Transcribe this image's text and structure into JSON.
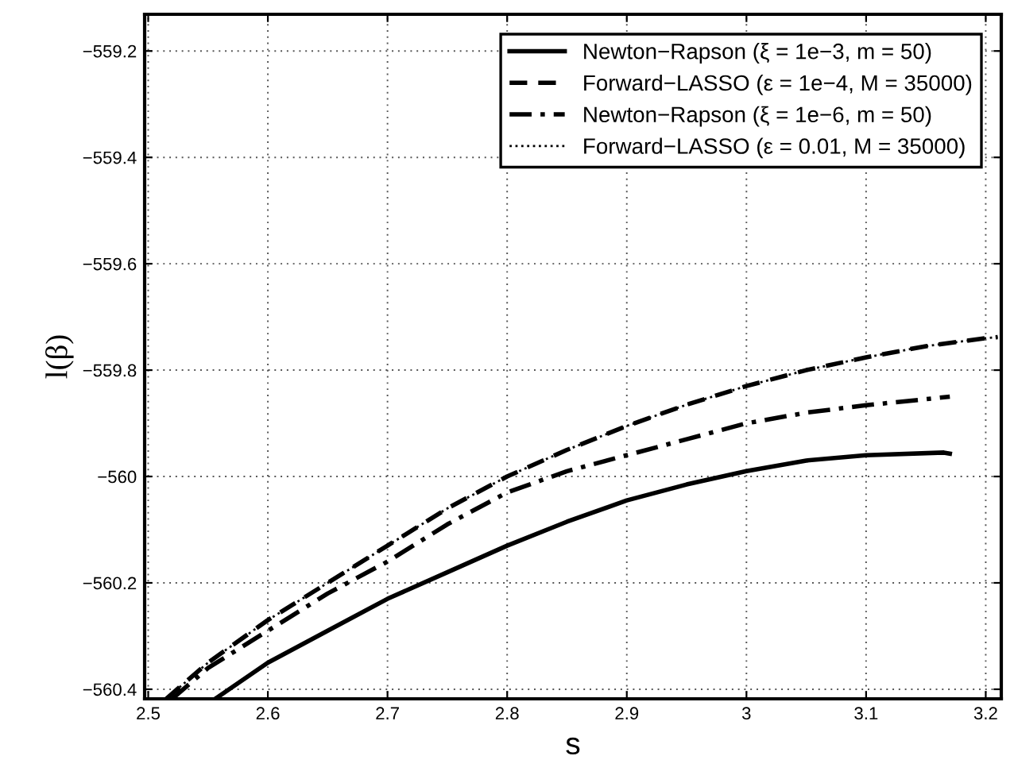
{
  "chart_data": {
    "type": "line",
    "xlabel": "s",
    "ylabel": "l(β)",
    "xlim": [
      2.497,
      3.213
    ],
    "ylim": [
      -560.418,
      -559.131
    ],
    "xticks": [
      2.5,
      2.6,
      2.7,
      2.8,
      2.9,
      3,
      3.1,
      3.2
    ],
    "yticks": [
      -560.4,
      -560.2,
      -560,
      -559.8,
      -559.6,
      -559.4,
      -559.2
    ],
    "grid": true,
    "legend": "top right",
    "series": [
      {
        "name": "Newton−Rapson (ξ = 1e−3, m = 50)",
        "color": "#000000",
        "line_style": "solid",
        "x": [
          2.556,
          2.6,
          2.65,
          2.7,
          2.75,
          2.8,
          2.85,
          2.9,
          2.95,
          3.0,
          3.05,
          3.1,
          3.165,
          3.17
        ],
        "values": [
          -560.418,
          -560.35,
          -560.29,
          -560.23,
          -560.18,
          -560.13,
          -560.085,
          -560.045,
          -560.015,
          -559.99,
          -559.97,
          -559.96,
          -559.955,
          -559.957
        ]
      },
      {
        "name": "Forward−LASSO (ε = 1e−4, M = 35000)",
        "color": "#000000",
        "line_style": "dashed",
        "x": [
          2.515,
          2.55,
          2.6,
          2.65,
          2.7,
          2.75,
          2.8,
          2.85,
          2.9,
          2.95,
          3.0,
          3.05,
          3.1,
          3.15,
          3.2,
          3.21
        ],
        "values": [
          -560.418,
          -560.35,
          -560.27,
          -560.2,
          -560.13,
          -560.06,
          -560.0,
          -559.95,
          -559.905,
          -559.865,
          -559.83,
          -559.8,
          -559.776,
          -559.755,
          -559.74,
          -559.738
        ]
      },
      {
        "name": "Newton−Rapson (ξ = 1e−6, m = 50)",
        "color": "#000000",
        "line_style": "dashdot",
        "x": [
          2.52,
          2.55,
          2.6,
          2.65,
          2.7,
          2.75,
          2.8,
          2.85,
          2.9,
          2.95,
          3.0,
          3.05,
          3.1,
          3.17
        ],
        "values": [
          -560.418,
          -560.36,
          -560.29,
          -560.22,
          -560.16,
          -560.09,
          -560.03,
          -559.99,
          -559.96,
          -559.93,
          -559.9,
          -559.88,
          -559.866,
          -559.85
        ]
      },
      {
        "name": "Forward−LASSO (ε = 0.01, M = 35000)",
        "color": "#000000",
        "line_style": "dotted",
        "x": [
          2.515,
          2.55,
          2.6,
          2.65,
          2.7,
          2.75,
          2.8,
          2.85,
          2.9,
          2.95,
          3.0,
          3.05,
          3.1,
          3.15,
          3.2,
          3.21
        ],
        "values": [
          -560.418,
          -560.35,
          -560.27,
          -560.2,
          -560.13,
          -560.06,
          -560.0,
          -559.95,
          -559.905,
          -559.865,
          -559.83,
          -559.8,
          -559.776,
          -559.755,
          -559.74,
          -559.738
        ]
      }
    ]
  }
}
